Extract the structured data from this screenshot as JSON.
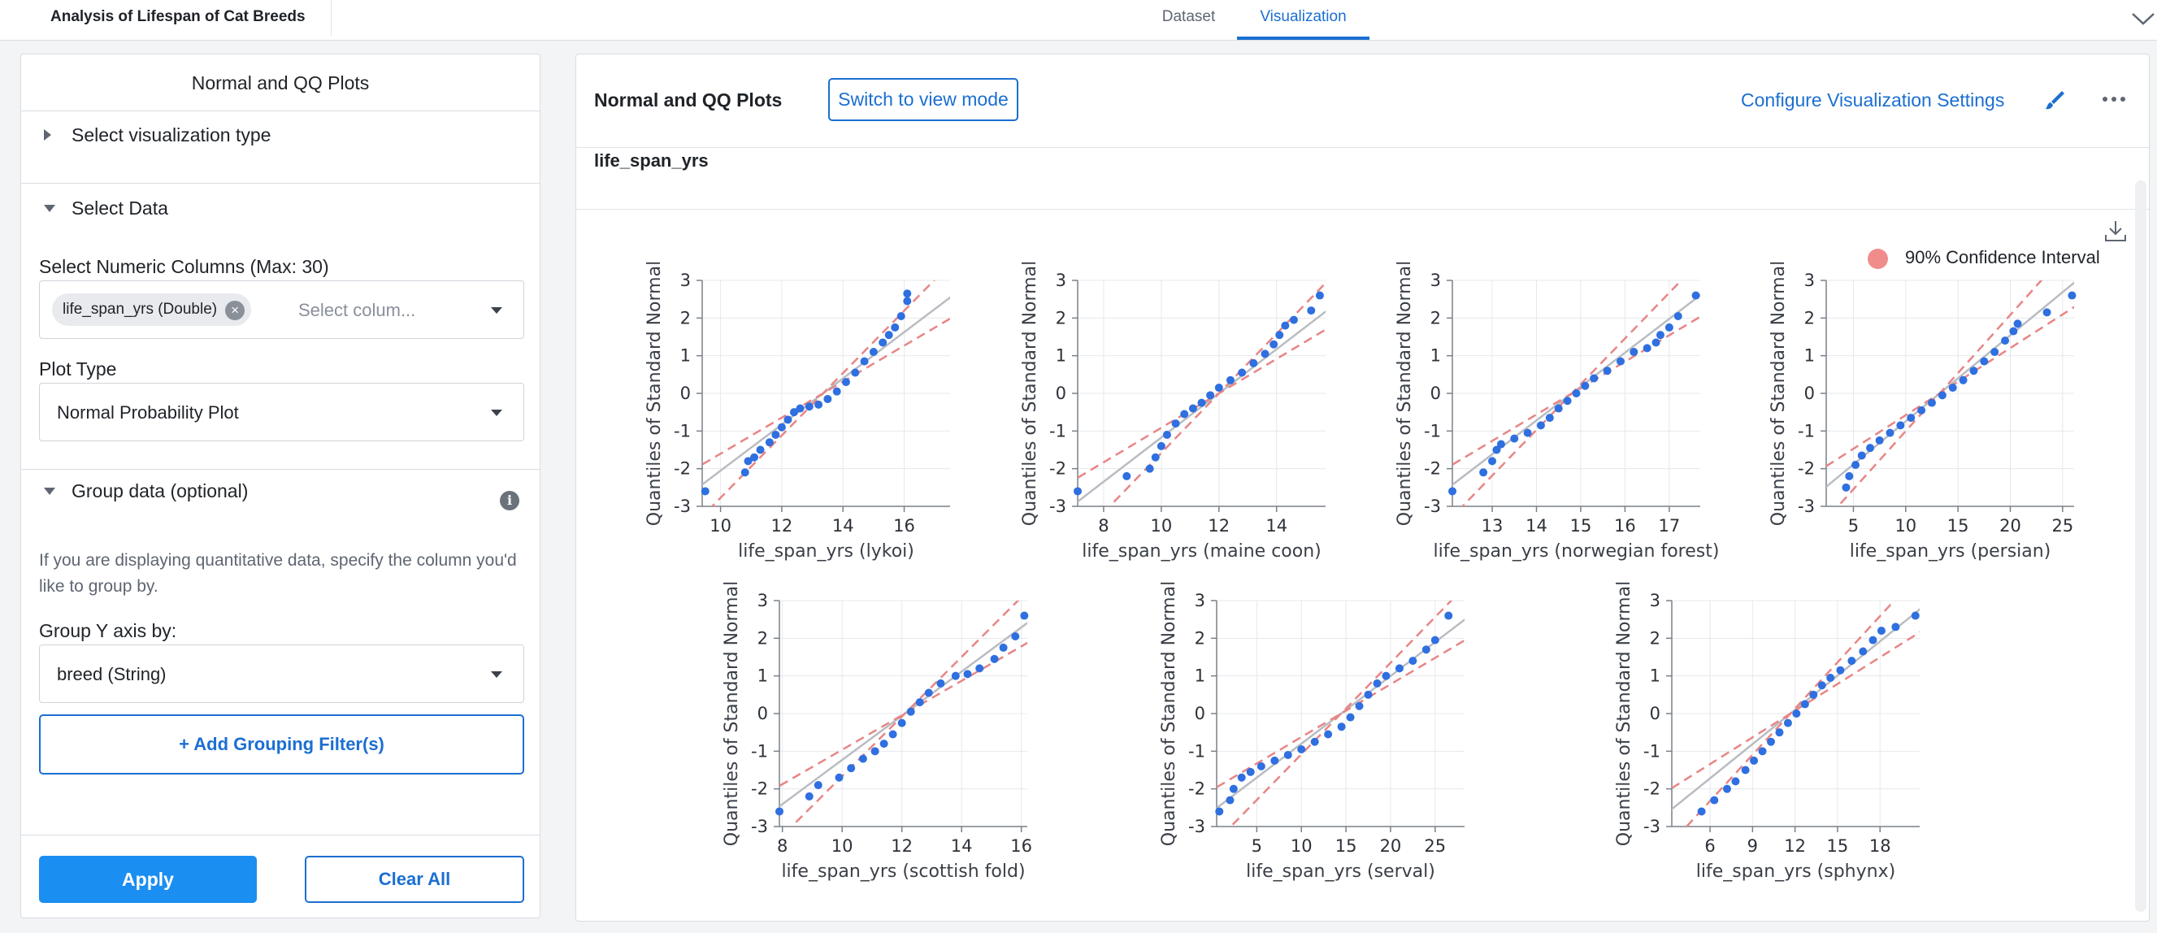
{
  "app": {
    "title": "Analysis of Lifespan of Cat Breeds",
    "tabs": [
      "Dataset",
      "Visualization"
    ],
    "active_tab": "Visualization"
  },
  "sidebar": {
    "title": "Normal and QQ Plots",
    "select_vis_type": "Select visualization type",
    "select_data": "Select Data",
    "numeric_columns_label": "Select Numeric Columns (Max: 30)",
    "selected_column_chip": "life_span_yrs (Double)",
    "column_placeholder": "Select colum...",
    "plot_type_label": "Plot Type",
    "plot_type_value": "Normal Probability Plot",
    "group_data": "Group data (optional)",
    "help_text": "If you are displaying quantitative data, specify the column you'd like to group by.",
    "group_y_label": "Group Y axis by:",
    "group_y_value": "breed (String)",
    "add_filter": "+ Add Grouping Filter(s)",
    "apply": "Apply",
    "clear_all": "Clear All"
  },
  "main": {
    "title": "Normal and QQ Plots",
    "switch_mode": "Switch to view mode",
    "configure": "Configure Visualization Settings",
    "column_label": "life_span_yrs",
    "legend_label": "90% Confidence Interval"
  },
  "colors": {
    "accent": "#1b6fd1",
    "points": "#2f6fe0",
    "confidence": "#e88585",
    "fit_line": "#b9bcc1"
  },
  "chart_data": [
    {
      "type": "scatter",
      "title": "",
      "xlabel": "life_span_yrs (lykoi)",
      "ylabel": "Quantiles of Standard Normal",
      "xlim": [
        9.4,
        17.5
      ],
      "ylim": [
        -3,
        3
      ],
      "xticks": [
        10,
        12,
        14,
        16
      ],
      "yticks": [
        3,
        2,
        1,
        0,
        -1,
        -2,
        -3
      ],
      "q1": 12.25,
      "q3": 14.45,
      "points": [
        [
          9.5,
          -2.6
        ],
        [
          10.8,
          -2.1
        ],
        [
          10.9,
          -1.8
        ],
        [
          11.1,
          -1.7
        ],
        [
          11.3,
          -1.5
        ],
        [
          11.6,
          -1.3
        ],
        [
          11.8,
          -1.1
        ],
        [
          12,
          -0.9
        ],
        [
          12.2,
          -0.7
        ],
        [
          12.4,
          -0.5
        ],
        [
          12.6,
          -0.4
        ],
        [
          12.9,
          -0.35
        ],
        [
          13.2,
          -0.3
        ],
        [
          13.5,
          -0.15
        ],
        [
          13.8,
          0.05
        ],
        [
          14.1,
          0.3
        ],
        [
          14.4,
          0.55
        ],
        [
          14.7,
          0.85
        ],
        [
          15,
          1.1
        ],
        [
          15.3,
          1.35
        ],
        [
          15.5,
          1.55
        ],
        [
          15.7,
          1.75
        ],
        [
          15.9,
          2.05
        ],
        [
          16.1,
          2.45
        ],
        [
          16.1,
          2.65
        ]
      ]
    },
    {
      "type": "scatter",
      "title": "",
      "xlabel": "life_span_yrs (maine coon)",
      "ylabel": "Quantiles of Standard Normal",
      "xlim": [
        7.1,
        15.7
      ],
      "ylim": [
        -3,
        3
      ],
      "xticks": [
        8,
        10,
        12,
        14
      ],
      "yticks": [
        3,
        2,
        1,
        0,
        -1,
        -2,
        -3
      ],
      "q1": 10.85,
      "q3": 13.15,
      "points": [
        [
          7.1,
          -2.6
        ],
        [
          8.8,
          -2.2
        ],
        [
          9.6,
          -2.0
        ],
        [
          9.8,
          -1.7
        ],
        [
          10.0,
          -1.4
        ],
        [
          10.2,
          -1.1
        ],
        [
          10.5,
          -0.8
        ],
        [
          10.8,
          -0.55
        ],
        [
          11.1,
          -0.4
        ],
        [
          11.4,
          -0.25
        ],
        [
          11.7,
          -0.05
        ],
        [
          12.0,
          0.15
        ],
        [
          12.4,
          0.35
        ],
        [
          12.8,
          0.55
        ],
        [
          13.2,
          0.8
        ],
        [
          13.6,
          1.05
        ],
        [
          13.9,
          1.3
        ],
        [
          14.1,
          1.55
        ],
        [
          14.3,
          1.8
        ],
        [
          14.6,
          1.95
        ],
        [
          15.2,
          2.2
        ],
        [
          15.5,
          2.6
        ]
      ]
    },
    {
      "type": "scatter",
      "title": "",
      "xlabel": "life_span_yrs (norwegian forest)",
      "ylabel": "Quantiles of Standard Normal",
      "xlim": [
        12.1,
        17.7
      ],
      "ylim": [
        -3,
        3
      ],
      "xticks": [
        13,
        14,
        15,
        16,
        17
      ],
      "yticks": [
        3,
        2,
        1,
        0,
        -1,
        -2,
        -3
      ],
      "q1": 14.05,
      "q3": 15.55,
      "points": [
        [
          12.1,
          -2.6
        ],
        [
          12.8,
          -2.1
        ],
        [
          13.0,
          -1.8
        ],
        [
          13.1,
          -1.5
        ],
        [
          13.2,
          -1.35
        ],
        [
          13.5,
          -1.2
        ],
        [
          13.8,
          -1.05
        ],
        [
          14.1,
          -0.85
        ],
        [
          14.3,
          -0.65
        ],
        [
          14.5,
          -0.4
        ],
        [
          14.7,
          -0.2
        ],
        [
          14.9,
          0.0
        ],
        [
          15.1,
          0.2
        ],
        [
          15.3,
          0.4
        ],
        [
          15.6,
          0.6
        ],
        [
          15.9,
          0.85
        ],
        [
          16.2,
          1.1
        ],
        [
          16.5,
          1.2
        ],
        [
          16.7,
          1.35
        ],
        [
          16.8,
          1.55
        ],
        [
          17.0,
          1.75
        ],
        [
          17.2,
          2.05
        ],
        [
          17.6,
          2.6
        ]
      ]
    },
    {
      "type": "scatter",
      "title": "",
      "xlabel": "life_span_yrs (persian)",
      "ylabel": "Quantiles of Standard Normal",
      "xlim": [
        2.4,
        26.1
      ],
      "ylim": [
        -3,
        3
      ],
      "xticks": [
        5,
        10,
        15,
        20,
        25
      ],
      "yticks": [
        3,
        2,
        1,
        0,
        -1,
        -2,
        -3
      ],
      "q1": 10.3,
      "q3": 16.2,
      "points": [
        [
          4.3,
          -2.5
        ],
        [
          4.6,
          -2.2
        ],
        [
          5.2,
          -1.9
        ],
        [
          5.8,
          -1.65
        ],
        [
          6.6,
          -1.45
        ],
        [
          7.5,
          -1.25
        ],
        [
          8.5,
          -1.05
        ],
        [
          9.5,
          -0.85
        ],
        [
          10.5,
          -0.65
        ],
        [
          11.5,
          -0.45
        ],
        [
          12.5,
          -0.25
        ],
        [
          13.5,
          -0.05
        ],
        [
          14.5,
          0.15
        ],
        [
          15.5,
          0.35
        ],
        [
          16.5,
          0.6
        ],
        [
          17.5,
          0.85
        ],
        [
          18.5,
          1.1
        ],
        [
          19.5,
          1.4
        ],
        [
          20.3,
          1.65
        ],
        [
          20.7,
          1.85
        ],
        [
          23.5,
          2.15
        ],
        [
          25.9,
          2.6
        ]
      ]
    },
    {
      "type": "scatter",
      "title": "",
      "xlabel": "life_span_yrs (scottish fold)",
      "ylabel": "Quantiles of Standard Normal",
      "xlim": [
        7.9,
        16.2
      ],
      "ylim": [
        -3,
        3
      ],
      "xticks": [
        8,
        10,
        12,
        14,
        16
      ],
      "yticks": [
        3,
        2,
        1,
        0,
        -1,
        -2,
        -3
      ],
      "q1": 10.95,
      "q3": 13.25,
      "points": [
        [
          7.9,
          -2.6
        ],
        [
          8.9,
          -2.2
        ],
        [
          9.2,
          -1.9
        ],
        [
          9.9,
          -1.7
        ],
        [
          10.3,
          -1.45
        ],
        [
          10.7,
          -1.2
        ],
        [
          11.1,
          -1.0
        ],
        [
          11.4,
          -0.8
        ],
        [
          11.7,
          -0.55
        ],
        [
          12.0,
          -0.25
        ],
        [
          12.3,
          0.05
        ],
        [
          12.6,
          0.3
        ],
        [
          12.9,
          0.55
        ],
        [
          13.3,
          0.8
        ],
        [
          13.8,
          1.0
        ],
        [
          14.2,
          1.05
        ],
        [
          14.6,
          1.2
        ],
        [
          15.1,
          1.45
        ],
        [
          15.4,
          1.75
        ],
        [
          15.8,
          2.05
        ],
        [
          16.1,
          2.6
        ]
      ]
    },
    {
      "type": "scatter",
      "title": "",
      "xlabel": "life_span_yrs (serval)",
      "ylabel": "Quantiles of Standard Normal",
      "xlim": [
        0.5,
        28.3
      ],
      "ylim": [
        -3,
        3
      ],
      "xticks": [
        5,
        10,
        15,
        20,
        25
      ],
      "yticks": [
        3,
        2,
        1,
        0,
        -1,
        -2,
        -3
      ],
      "q1": 10.7,
      "q3": 18.2,
      "points": [
        [
          0.8,
          -2.6
        ],
        [
          2.0,
          -2.3
        ],
        [
          2.4,
          -2.0
        ],
        [
          3.3,
          -1.7
        ],
        [
          4.3,
          -1.55
        ],
        [
          5.5,
          -1.4
        ],
        [
          7.0,
          -1.25
        ],
        [
          8.5,
          -1.1
        ],
        [
          10,
          -0.95
        ],
        [
          11.5,
          -0.75
        ],
        [
          13,
          -0.55
        ],
        [
          14.5,
          -0.35
        ],
        [
          15.5,
          -0.1
        ],
        [
          16.5,
          0.2
        ],
        [
          17.5,
          0.5
        ],
        [
          18.5,
          0.8
        ],
        [
          19.5,
          1.0
        ],
        [
          21,
          1.2
        ],
        [
          22.5,
          1.4
        ],
        [
          24,
          1.7
        ],
        [
          25,
          1.95
        ],
        [
          26.5,
          2.6
        ]
      ]
    },
    {
      "type": "scatter",
      "title": "",
      "xlabel": "life_span_yrs (sphynx)",
      "ylabel": "Quantiles of Standard Normal",
      "xlim": [
        3.3,
        20.8
      ],
      "ylim": [
        -3,
        3
      ],
      "xticks": [
        6,
        9,
        12,
        15,
        18
      ],
      "yticks": [
        3,
        2,
        1,
        0,
        -1,
        -2,
        -3
      ],
      "q1": 9.45,
      "q3": 13.9,
      "points": [
        [
          5.4,
          -2.6
        ],
        [
          6.3,
          -2.3
        ],
        [
          7.2,
          -2.0
        ],
        [
          7.8,
          -1.8
        ],
        [
          8.5,
          -1.5
        ],
        [
          9.1,
          -1.25
        ],
        [
          9.7,
          -1.0
        ],
        [
          10.3,
          -0.75
        ],
        [
          10.9,
          -0.5
        ],
        [
          11.5,
          -0.25
        ],
        [
          12.1,
          0.0
        ],
        [
          12.7,
          0.25
        ],
        [
          13.3,
          0.5
        ],
        [
          13.9,
          0.75
        ],
        [
          14.5,
          0.95
        ],
        [
          15.2,
          1.15
        ],
        [
          16,
          1.4
        ],
        [
          16.8,
          1.65
        ],
        [
          17.5,
          1.95
        ],
        [
          18.1,
          2.2
        ],
        [
          19.1,
          2.3
        ],
        [
          20.5,
          2.6
        ]
      ]
    }
  ]
}
